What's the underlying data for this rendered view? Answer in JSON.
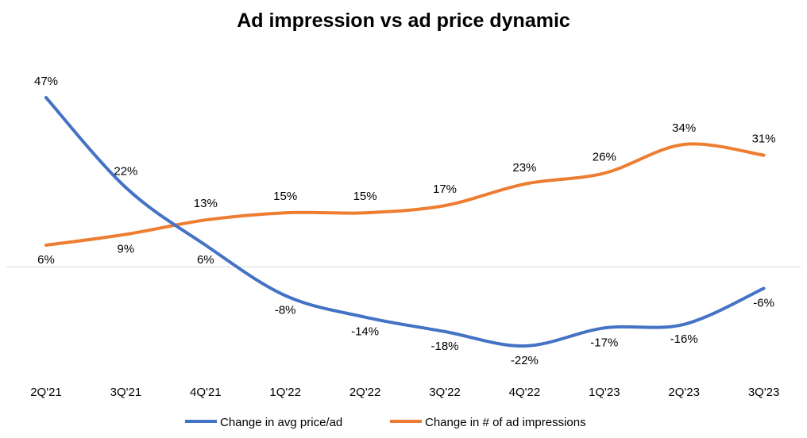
{
  "chart_data": {
    "type": "line",
    "title": "Ad impression vs ad price dynamic",
    "categories": [
      "2Q'21",
      "3Q'21",
      "4Q'21",
      "1Q'22",
      "2Q'22",
      "3Q'22",
      "4Q'22",
      "1Q'23",
      "2Q'23",
      "3Q'23"
    ],
    "series": [
      {
        "name": "Change in avg price/ad",
        "color": "#4472C4",
        "values": [
          47,
          22,
          6,
          -8,
          -14,
          -18,
          -22,
          -17,
          -16,
          -6
        ],
        "labels": [
          "47%",
          "22%",
          "6%",
          "-8%",
          "-14%",
          "-18%",
          "-22%",
          "-17%",
          "-16%",
          "-6%"
        ]
      },
      {
        "name": "Change in # of ad impressions",
        "color": "#ED7D31",
        "values": [
          6,
          9,
          13,
          15,
          15,
          17,
          23,
          26,
          34,
          31
        ],
        "labels": [
          "6%",
          "9%",
          "13%",
          "15%",
          "15%",
          "17%",
          "23%",
          "26%",
          "34%",
          "31%"
        ]
      }
    ],
    "ylim": [
      -30,
      50
    ],
    "grid": false,
    "zero_line": true,
    "legend_position": "bottom",
    "xlabel": "",
    "ylabel": ""
  }
}
